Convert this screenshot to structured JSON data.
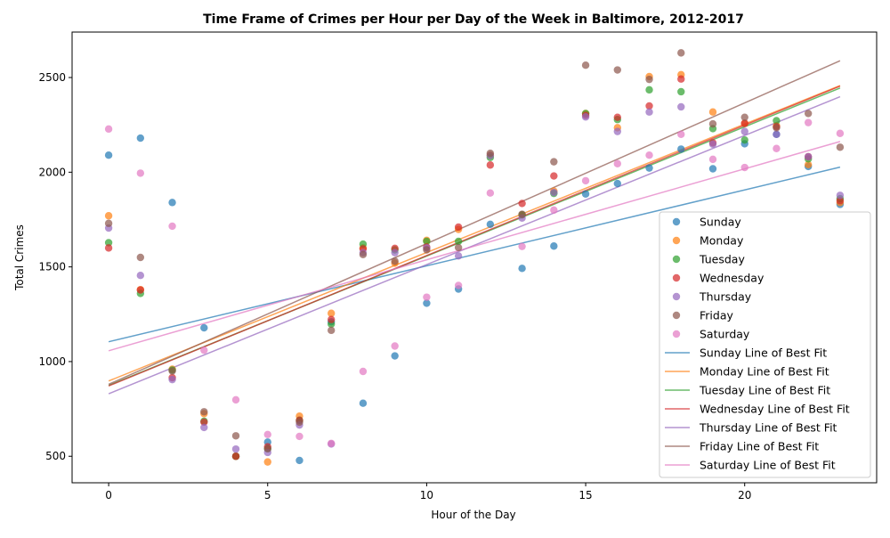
{
  "chart_data": {
    "type": "scatter",
    "title": "Time Frame of Crimes per Hour per Day of the Week in Baltimore, 2012-2017",
    "xlabel": "Hour of the Day",
    "ylabel": "Total Crimes",
    "xlim": [
      -1.15,
      24.15
    ],
    "ylim": [
      360,
      2740
    ],
    "xticks": [
      0,
      5,
      10,
      15,
      20
    ],
    "yticks": [
      500,
      1000,
      1500,
      2000,
      2500
    ],
    "grid": false,
    "legend_position": "lower right",
    "x": [
      0,
      1,
      2,
      3,
      4,
      5,
      6,
      7,
      8,
      9,
      10,
      11,
      12,
      13,
      14,
      15,
      16,
      17,
      18,
      19,
      20,
      21,
      22,
      23
    ],
    "series": [
      {
        "name": "Sunday",
        "color": "#1f77b4",
        "fit_label": "Sunday Line of Best Fit",
        "values": [
          2090,
          2180,
          1840,
          1178,
          500,
          575,
          478,
          1210,
          780,
          1030,
          1308,
          1383,
          1725,
          1492,
          1610,
          1885,
          1940,
          2022,
          2122,
          2018,
          2150,
          2200,
          2030,
          1830
        ]
      },
      {
        "name": "Monday",
        "color": "#ff7f0e",
        "fit_label": "Monday Line of Best Fit",
        "values": [
          1770,
          1380,
          960,
          725,
          500,
          470,
          712,
          1255,
          1600,
          1520,
          1640,
          1698,
          2090,
          1775,
          1900,
          2310,
          2235,
          2505,
          2515,
          2318,
          2258,
          2245,
          2040,
          1840
        ]
      },
      {
        "name": "Tuesday",
        "color": "#2ca02c",
        "fit_label": "Tuesday Line of Best Fit",
        "values": [
          1628,
          1360,
          955,
          685,
          500,
          540,
          690,
          1198,
          1620,
          1590,
          1635,
          1635,
          2078,
          1775,
          1888,
          2310,
          2278,
          2435,
          2425,
          2230,
          2170,
          2272,
          2070,
          1860
        ]
      },
      {
        "name": "Wednesday",
        "color": "#d62728",
        "fit_label": "Wednesday Line of Best Fit",
        "values": [
          1600,
          1378,
          915,
          680,
          500,
          550,
          690,
          1222,
          1595,
          1598,
          1605,
          1710,
          2038,
          1835,
          1980,
          2300,
          2290,
          2350,
          2492,
          2155,
          2258,
          2240,
          2082,
          1850
        ]
      },
      {
        "name": "Thursday",
        "color": "#9467bd",
        "fit_label": "Thursday Line of Best Fit",
        "values": [
          1705,
          1455,
          905,
          652,
          538,
          520,
          665,
          565,
          1575,
          1575,
          1600,
          1558,
          2088,
          1758,
          1893,
          2292,
          2215,
          2318,
          2345,
          2148,
          2215,
          2200,
          2082,
          1878
        ]
      },
      {
        "name": "Friday",
        "color": "#8c564b",
        "fit_label": "Friday Line of Best Fit",
        "values": [
          1730,
          1550,
          950,
          735,
          608,
          540,
          680,
          1165,
          1565,
          1530,
          1590,
          1602,
          2100,
          1778,
          2055,
          2565,
          2540,
          2490,
          2630,
          2255,
          2290,
          2235,
          2310,
          2132
        ]
      },
      {
        "name": "Saturday",
        "color": "#e377c2",
        "fit_label": "Saturday Line of Best Fit",
        "values": [
          2228,
          1995,
          1715,
          1060,
          798,
          615,
          605,
          568,
          948,
          1082,
          1340,
          1402,
          1890,
          1608,
          1800,
          1955,
          2045,
          2090,
          2200,
          2068,
          2025,
          2125,
          2262,
          2205
        ]
      }
    ]
  }
}
